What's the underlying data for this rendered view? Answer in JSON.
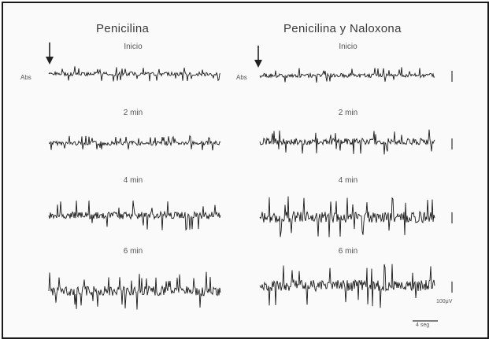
{
  "columns": [
    {
      "title": "Penicilina",
      "side_label": "Abs",
      "panels": [
        "Inicio",
        "2 min",
        "4 min",
        "6 min"
      ]
    },
    {
      "title": "Penicilina y Naloxona",
      "side_label": "Abs",
      "panels": [
        "Inicio",
        "2 min",
        "4 min",
        "6 min"
      ]
    }
  ],
  "scale_voltage": "100μV",
  "scale_time": "4 seg",
  "colors": {
    "trace": "#1a1a1a",
    "text": "#444444",
    "border": "#1a1a1a"
  }
}
